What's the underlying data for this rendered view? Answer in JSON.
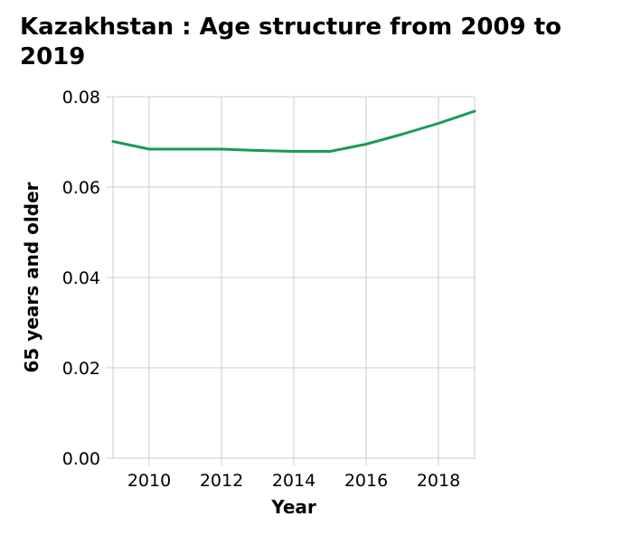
{
  "chart_data": {
    "type": "line",
    "title": "Kazakhstan : Age structure from 2009 to 2019",
    "xlabel": "Year",
    "ylabel": "65 years and older",
    "xlim": [
      2009,
      2019
    ],
    "ylim": [
      0,
      0.08
    ],
    "xticks": [
      2010,
      2012,
      2014,
      2016,
      2018
    ],
    "yticks": [
      "0.00",
      "0.02",
      "0.04",
      "0.06",
      "0.08"
    ],
    "grid": true,
    "line_color": "#1a9a56",
    "series": [
      {
        "x": [
          2009,
          2010,
          2011,
          2012,
          2013,
          2014,
          2015,
          2016,
          2017,
          2018,
          2019
        ],
        "values": [
          0.0701,
          0.0684,
          0.0684,
          0.0684,
          0.0681,
          0.0679,
          0.0679,
          0.0695,
          0.0717,
          0.0741,
          0.0768
        ]
      }
    ]
  }
}
